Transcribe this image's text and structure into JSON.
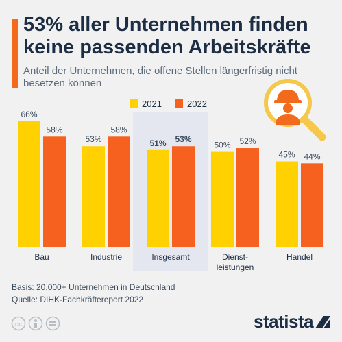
{
  "title": "53% aller Unternehmen finden keine passenden Arbeitskräfte",
  "subtitle": "Anteil der Unternehmen, die offene Stellen längerfristig nicht besetzen können",
  "footer": {
    "basis": "Basis: 20.000+ Unternehmen in Deutschland",
    "source": "Quelle: DIHK-Fachkräftereport 2022",
    "brand": "statista"
  },
  "icons": [
    "magnifier-worker-icon",
    "cc-icon",
    "by-icon",
    "equals-icon",
    "statista-logo-icon"
  ],
  "colors": {
    "accent": "#f26a1b",
    "series_2021": "#ffd100",
    "series_2022": "#f7611f",
    "highlight": "#e4e7ef"
  },
  "chart_data": {
    "type": "bar",
    "categories": [
      "Bau",
      "Industrie",
      "Insgesamt",
      "Dienst- leistungen",
      "Handel"
    ],
    "category_lines": [
      [
        "Bau"
      ],
      [
        "Industrie"
      ],
      [
        "Insgesamt"
      ],
      [
        "Dienst-",
        "leistungen"
      ],
      [
        "Handel"
      ]
    ],
    "series": [
      {
        "name": "2021",
        "values": [
          66,
          53,
          51,
          50,
          45
        ],
        "labels": [
          "66%",
          "53%",
          "51%",
          "50%",
          "45%"
        ],
        "color": "#ffd100"
      },
      {
        "name": "2022",
        "values": [
          58,
          58,
          53,
          52,
          44
        ],
        "labels": [
          "58%",
          "58%",
          "53%",
          "52%",
          "44%"
        ],
        "color": "#f7611f"
      }
    ],
    "highlight_category": "Insgesamt",
    "ylim": [
      0,
      66
    ],
    "legend": "top-right",
    "grid": false
  }
}
